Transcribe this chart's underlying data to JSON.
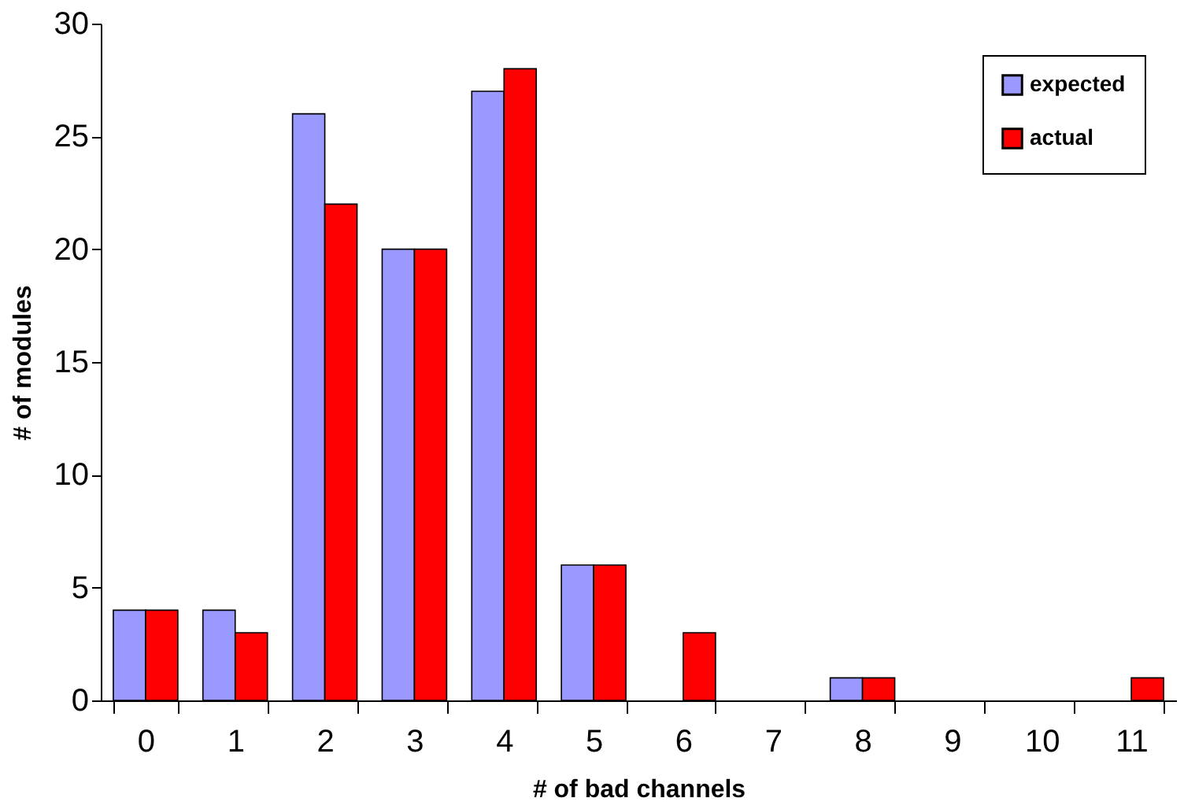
{
  "chart_data": {
    "type": "bar",
    "xlabel": "# of bad channels",
    "ylabel": "# of modules",
    "categories": [
      "0",
      "1",
      "2",
      "3",
      "4",
      "5",
      "6",
      "7",
      "8",
      "9",
      "10",
      "11"
    ],
    "series": [
      {
        "name": "expected",
        "color": "#9999ff",
        "values": [
          4,
          4,
          26,
          20,
          27,
          6,
          0,
          0,
          1,
          0,
          0,
          0
        ]
      },
      {
        "name": "actual",
        "color": "#ff0000",
        "values": [
          4,
          3,
          22,
          20,
          28,
          6,
          3,
          0,
          1,
          0,
          0,
          1
        ]
      }
    ],
    "ylim": [
      0,
      30
    ],
    "yticks": [
      0,
      5,
      10,
      15,
      20,
      25,
      30
    ],
    "grid": false,
    "legend": "top right"
  }
}
